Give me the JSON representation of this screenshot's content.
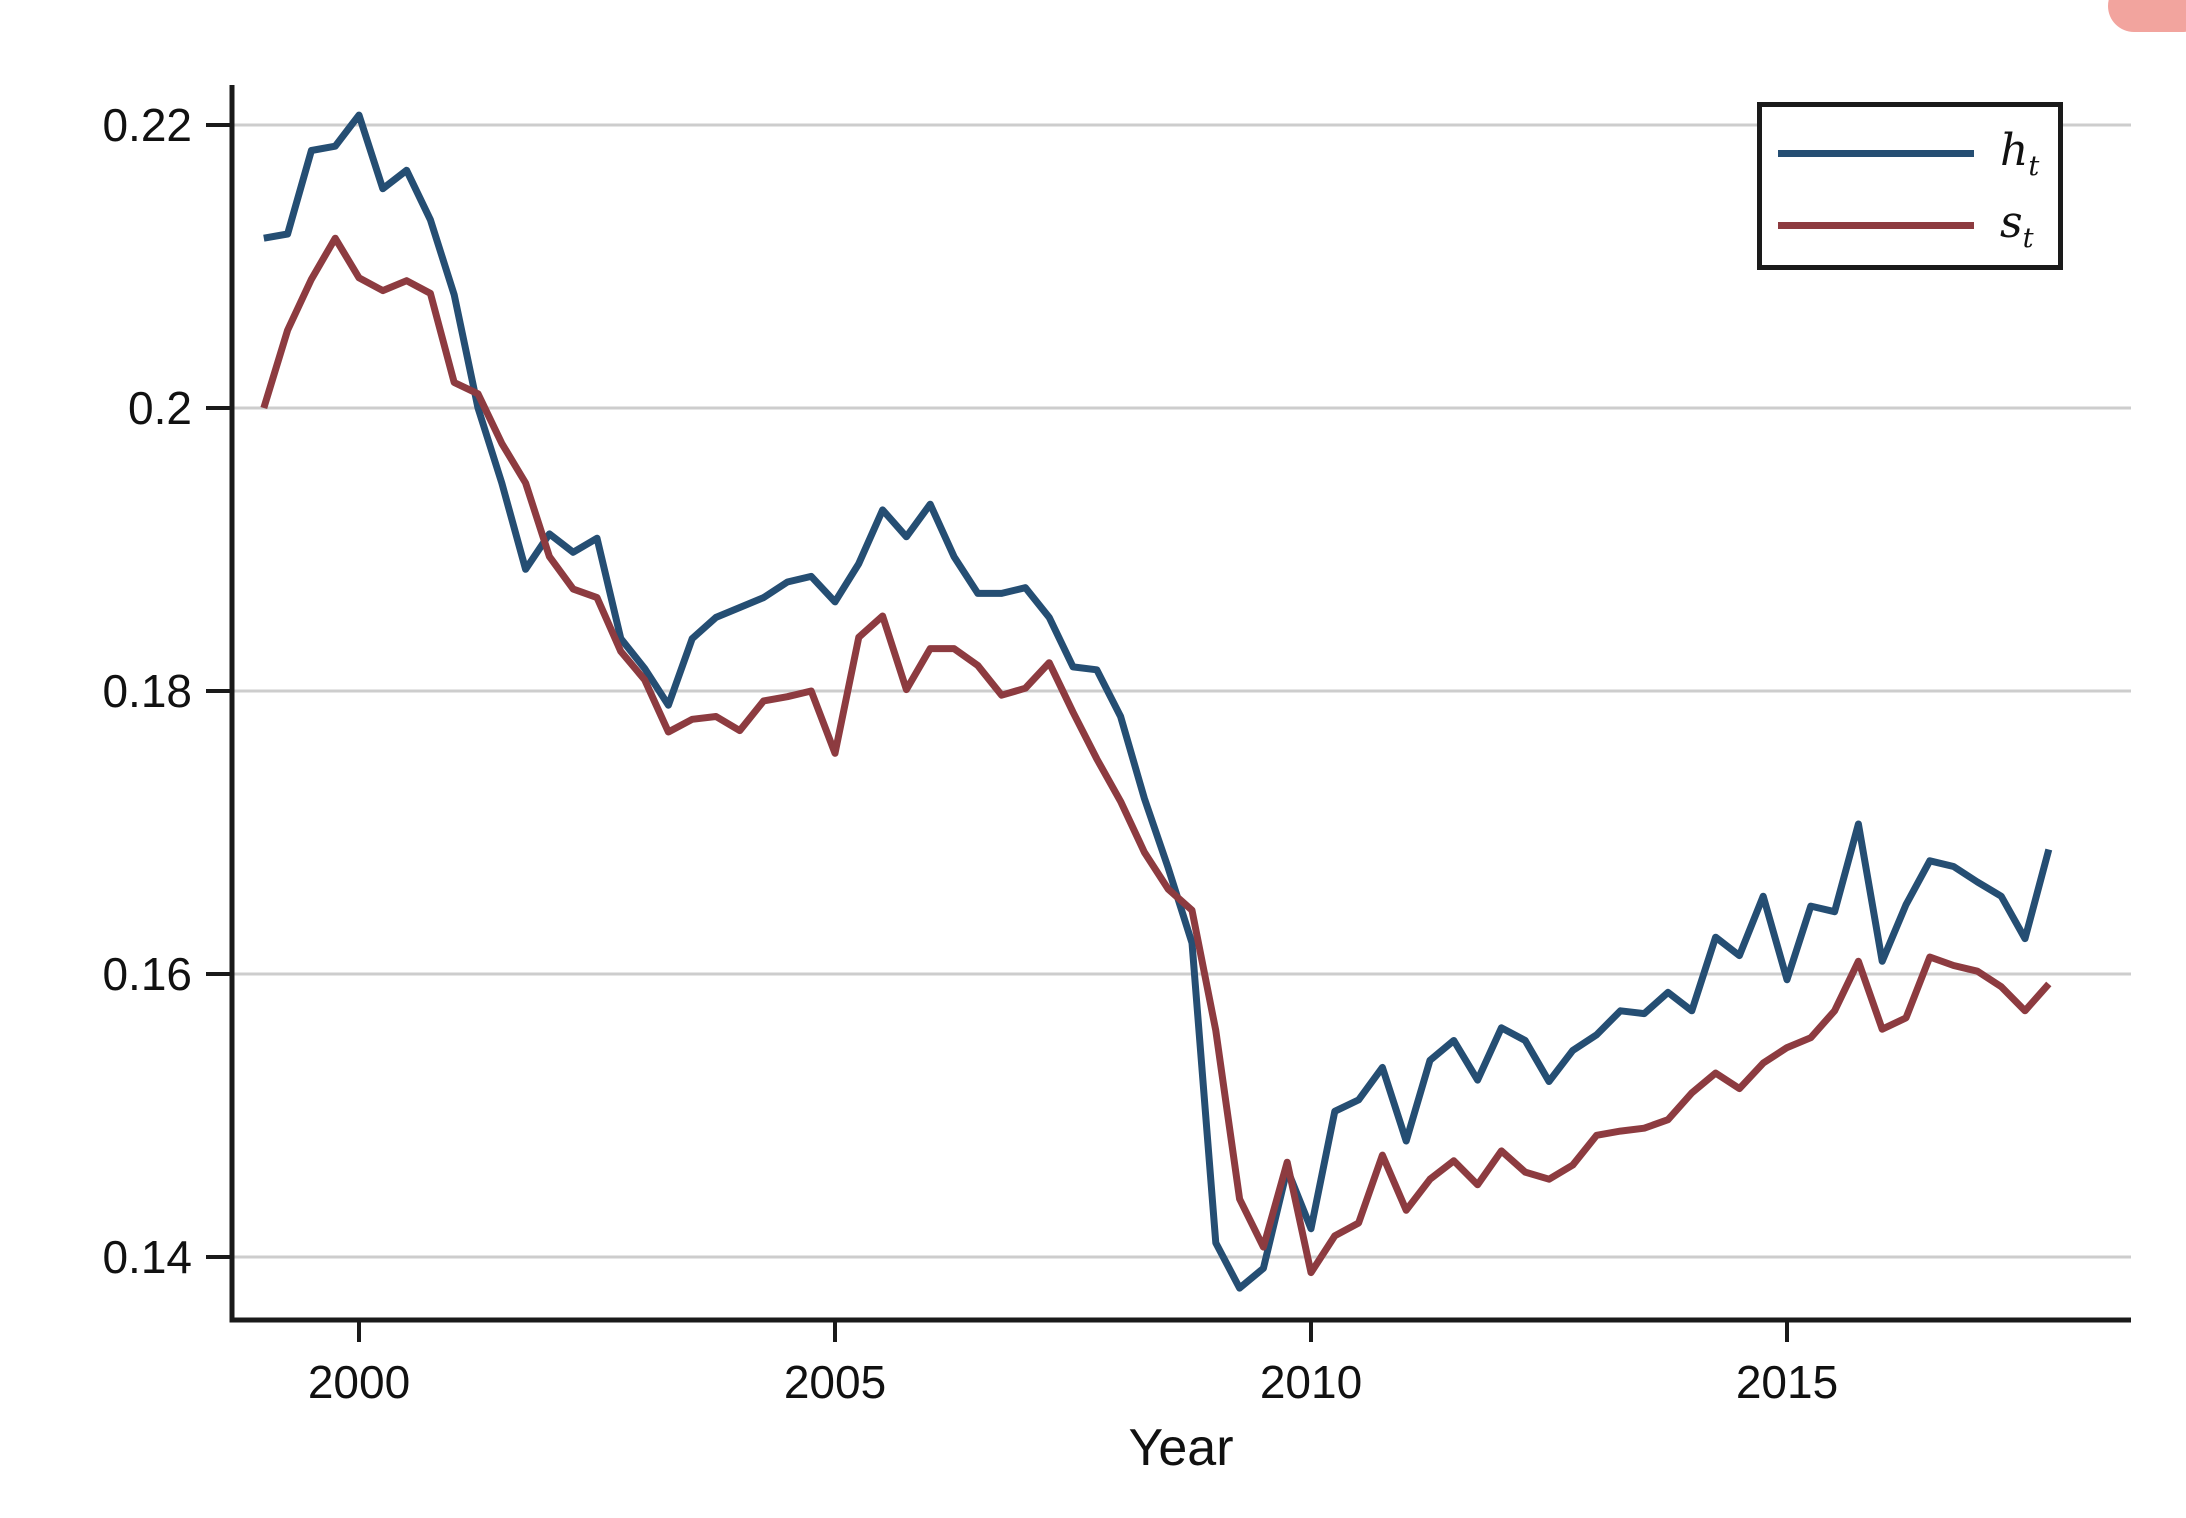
{
  "chart_data": {
    "type": "line",
    "title": "",
    "xlabel": "Year",
    "grid": "horizontal",
    "legend_position": "top-right",
    "xlim": [
      1998.66,
      2018.6
    ],
    "ylim": [
      0.1347,
      0.2227
    ],
    "x_ticks": {
      "values": [
        2000,
        2005,
        2010,
        2015
      ],
      "labels": [
        "2000",
        "2005",
        "2010",
        "2015"
      ]
    },
    "y_ticks": {
      "values": [
        0.22,
        0.2,
        0.18,
        0.16,
        0.14
      ],
      "labels": [
        "0.22",
        "0.2",
        "0.18",
        "0.16",
        "0.14"
      ]
    },
    "x": [
      1999.0,
      1999.25,
      1999.5,
      1999.75,
      2000.0,
      2000.25,
      2000.5,
      2000.75,
      2001.0,
      2001.25,
      2001.5,
      2001.75,
      2002.0,
      2002.25,
      2002.5,
      2002.75,
      2003.0,
      2003.25,
      2003.5,
      2003.75,
      2004.0,
      2004.25,
      2004.5,
      2004.75,
      2005.0,
      2005.25,
      2005.5,
      2005.75,
      2006.0,
      2006.25,
      2006.5,
      2006.75,
      2007.0,
      2007.25,
      2007.5,
      2007.75,
      2008.0,
      2008.25,
      2008.5,
      2008.75,
      2009.0,
      2009.25,
      2009.5,
      2009.75,
      2010.0,
      2010.25,
      2010.5,
      2010.75,
      2011.0,
      2011.25,
      2011.5,
      2011.75,
      2012.0,
      2012.25,
      2012.5,
      2012.75,
      2013.0,
      2013.25,
      2013.5,
      2013.75,
      2014.0,
      2014.25,
      2014.5,
      2014.75,
      2015.0,
      2015.25,
      2015.5,
      2015.75,
      2016.0,
      2016.25,
      2016.5,
      2016.75,
      2017.0,
      2017.25,
      2017.5,
      2017.75
    ],
    "series": [
      {
        "name": "h_t",
        "legend_main": "h",
        "legend_sub": "t",
        "color": "#254E73",
        "values": [
          0.212,
          0.2123,
          0.2182,
          0.2185,
          0.2207,
          0.2155,
          0.2168,
          0.2133,
          0.208,
          0.2,
          0.1947,
          0.1886,
          0.1911,
          0.1898,
          0.1908,
          0.1837,
          0.1816,
          0.179,
          0.1837,
          0.1852,
          0.1859,
          0.1866,
          0.1877,
          0.1881,
          0.1863,
          0.189,
          0.1928,
          0.1909,
          0.1932,
          0.1895,
          0.1869,
          0.1869,
          0.1873,
          0.1852,
          0.1817,
          0.1815,
          0.1782,
          0.1724,
          0.1675,
          0.1622,
          0.141,
          0.1378,
          0.1392,
          0.1462,
          0.142,
          0.1503,
          0.1511,
          0.1534,
          0.1482,
          0.1539,
          0.1553,
          0.1525,
          0.1562,
          0.1553,
          0.1524,
          0.1546,
          0.1557,
          0.1574,
          0.1572,
          0.1587,
          0.1574,
          0.1626,
          0.1613,
          0.1655,
          0.1596,
          0.1648,
          0.1644,
          0.1706,
          0.1609,
          0.1649,
          0.168,
          0.1676,
          0.1665,
          0.1655,
          0.1625,
          0.1688
        ]
      },
      {
        "name": "s_t",
        "legend_main": "s",
        "legend_sub": "t",
        "color": "#8D3B40",
        "values": [
          0.2,
          0.2055,
          0.2091,
          0.212,
          0.2092,
          0.2083,
          0.209,
          0.2081,
          0.2018,
          0.201,
          0.1975,
          0.1947,
          0.1895,
          0.1872,
          0.1866,
          0.1828,
          0.1808,
          0.1771,
          0.178,
          0.1782,
          0.1772,
          0.1793,
          0.1796,
          0.18,
          0.1756,
          0.1838,
          0.1853,
          0.1801,
          0.183,
          0.183,
          0.1818,
          0.1797,
          0.1802,
          0.182,
          0.1785,
          0.1752,
          0.1722,
          0.1686,
          0.166,
          0.1645,
          0.156,
          0.1441,
          0.1407,
          0.1467,
          0.1389,
          0.1415,
          0.1424,
          0.1472,
          0.1433,
          0.1455,
          0.1468,
          0.1451,
          0.1475,
          0.146,
          0.1455,
          0.1465,
          0.1486,
          0.1489,
          0.1491,
          0.1497,
          0.1516,
          0.153,
          0.1519,
          0.1537,
          0.1548,
          0.1555,
          0.1574,
          0.1609,
          0.1561,
          0.1569,
          0.1612,
          0.1606,
          0.1602,
          0.1591,
          0.1574,
          0.1593
        ]
      }
    ],
    "colors": {
      "grid": "#cdcdcd",
      "axis": "#1a1a1a",
      "text": "#111111",
      "artifact": "#F2A49E"
    }
  }
}
